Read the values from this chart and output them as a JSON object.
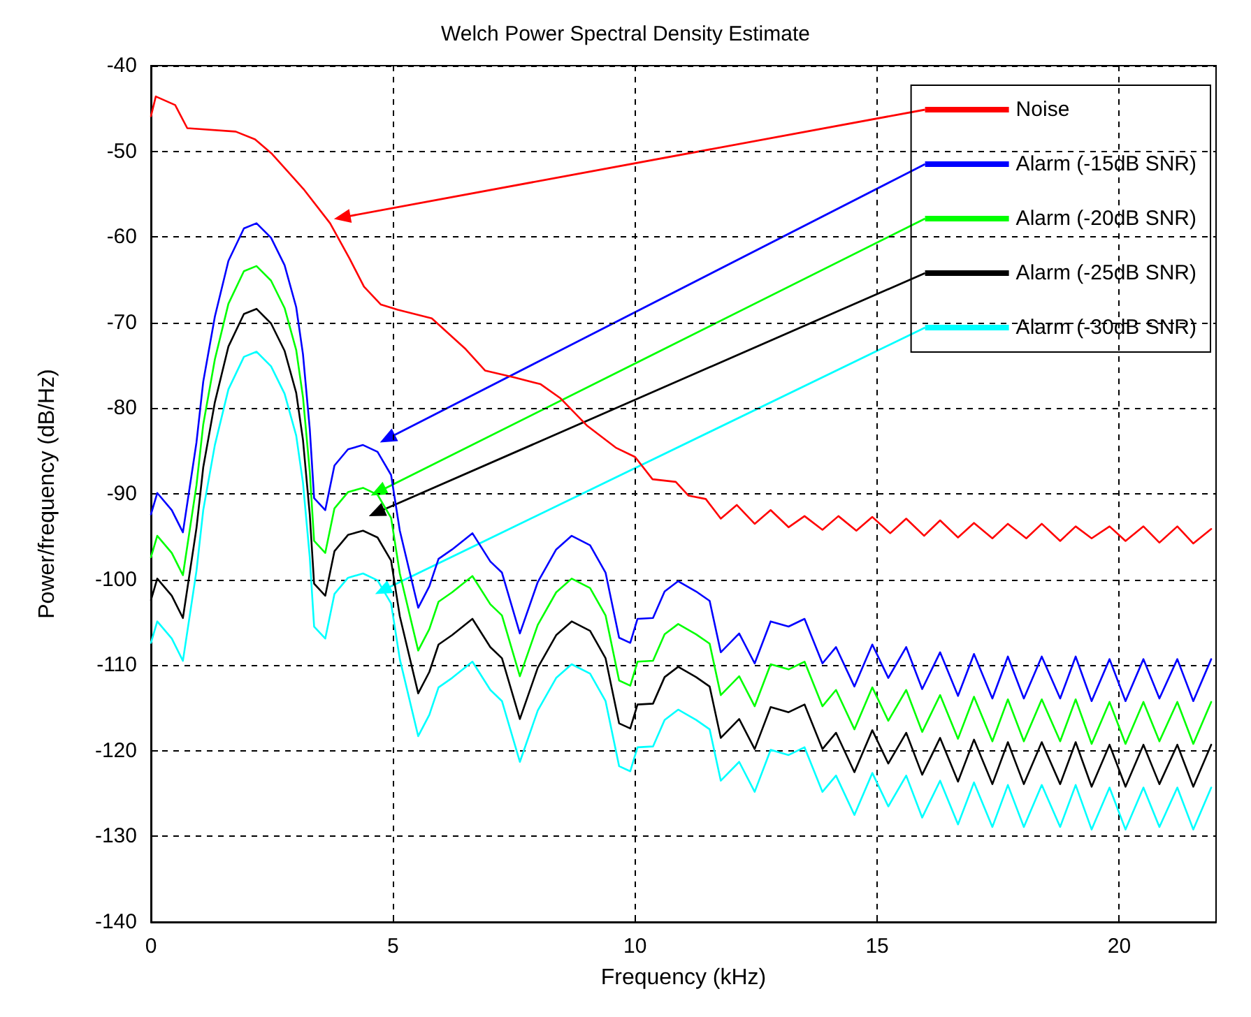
{
  "chart_data": {
    "type": "line",
    "title": "Welch Power Spectral Density Estimate",
    "xlabel": "Frequency (kHz)",
    "ylabel": "Power/frequency (dB/Hz)",
    "xlim": [
      0,
      22
    ],
    "xticks": [
      0,
      5,
      10,
      15,
      20
    ],
    "ylim": [
      -140,
      -40
    ],
    "yticks": [
      -140,
      -130,
      -120,
      -110,
      -100,
      -90,
      -80,
      -70,
      -60,
      -50,
      -40
    ],
    "grid": true,
    "legend": "top right",
    "marker": "none",
    "line_style": "solid",
    "series": [
      {
        "name": "Noise",
        "color": "#ff0000",
        "x": [
          0,
          0.1,
          0.5,
          0.75,
          1.75,
          2.15,
          2.5,
          3.15,
          3.7,
          4.1,
          4.4,
          4.75,
          5.1,
          5.8,
          6.5,
          6.9,
          7.5,
          8.05,
          8.45,
          9.0,
          9.6,
          10.0,
          10.36,
          10.84,
          11.1,
          11.46,
          11.77,
          12.1,
          12.47,
          12.8,
          13.17,
          13.5,
          13.87,
          14.2,
          14.57,
          14.9,
          15.27,
          15.6,
          15.97,
          16.3,
          16.67,
          17.0,
          17.38,
          17.7,
          18.08,
          18.4,
          18.78,
          19.1,
          19.43,
          19.8,
          20.13,
          20.5,
          20.83,
          21.2,
          21.53,
          21.9
        ],
        "values": [
          -45.9,
          -43.6,
          -44.6,
          -47.3,
          -47.7,
          -48.6,
          -50.3,
          -54.4,
          -58.4,
          -62.5,
          -65.8,
          -67.9,
          -68.5,
          -69.5,
          -73.1,
          -75.6,
          -76.4,
          -77.2,
          -78.8,
          -82,
          -84.6,
          -85.7,
          -88.3,
          -88.6,
          -90.2,
          -90.6,
          -92.9,
          -91.3,
          -93.5,
          -91.9,
          -93.9,
          -92.6,
          -94.2,
          -92.6,
          -94.3,
          -92.7,
          -94.6,
          -92.9,
          -94.9,
          -93.1,
          -95.1,
          -93.4,
          -95.2,
          -93.5,
          -95.2,
          -93.5,
          -95.5,
          -93.8,
          -95.2,
          -93.8,
          -95.5,
          -93.8,
          -95.7,
          -93.8,
          -95.8,
          -94.1
        ]
      },
      {
        "name": "Alarm (-15dB SNR)",
        "color": "#0000ff",
        "x": [
          0,
          0.13,
          0.43,
          0.66,
          0.94,
          1.08,
          1.32,
          1.6,
          1.92,
          2.18,
          2.48,
          2.76,
          3.0,
          3.14,
          3.28,
          3.37,
          3.6,
          3.79,
          4.07,
          4.38,
          4.68,
          4.96,
          5.14,
          5.52,
          5.75,
          5.94,
          6.22,
          6.64,
          7.01,
          7.25,
          7.62,
          7.99,
          8.37,
          8.69,
          9.07,
          9.39,
          9.67,
          9.9,
          10.05,
          10.37,
          10.61,
          10.89,
          11.26,
          11.54,
          11.77,
          12.15,
          12.47,
          12.8,
          13.17,
          13.5,
          13.87,
          14.15,
          14.53,
          14.9,
          15.23,
          15.6,
          15.93,
          16.3,
          16.67,
          17.0,
          17.38,
          17.7,
          18.03,
          18.4,
          18.78,
          19.1,
          19.43,
          19.8,
          20.13,
          20.5,
          20.83,
          21.2,
          21.53,
          21.9
        ],
        "values": [
          -92.4,
          -89.9,
          -91.9,
          -94.5,
          -84,
          -76.9,
          -69.3,
          -62.8,
          -59,
          -58.4,
          -60.1,
          -63.3,
          -68.2,
          -73.7,
          -82.4,
          -90.5,
          -91.9,
          -86.7,
          -84.8,
          -84.3,
          -85.1,
          -87.8,
          -94.3,
          -103.3,
          -100.8,
          -97.6,
          -96.5,
          -94.6,
          -97.9,
          -99.2,
          -106.3,
          -100.3,
          -96.5,
          -94.9,
          -96,
          -99.2,
          -106.8,
          -107.4,
          -104.6,
          -104.5,
          -101.4,
          -100.2,
          -101.4,
          -102.5,
          -108.5,
          -106.3,
          -109.8,
          -104.9,
          -105.5,
          -104.6,
          -109.8,
          -107.9,
          -112.5,
          -107.6,
          -111.5,
          -107.9,
          -112.8,
          -108.5,
          -113.6,
          -108.7,
          -113.9,
          -109,
          -113.9,
          -109,
          -113.9,
          -109,
          -114.2,
          -109.3,
          -114.2,
          -109.3,
          -113.9,
          -109.3,
          -114.2,
          -109.3
        ]
      },
      {
        "name": "Alarm (-20dB SNR)",
        "color": "#00ff00",
        "x": [
          0,
          0.13,
          0.43,
          0.66,
          0.94,
          1.08,
          1.32,
          1.6,
          1.92,
          2.18,
          2.48,
          2.76,
          3.0,
          3.14,
          3.28,
          3.37,
          3.6,
          3.79,
          4.07,
          4.38,
          4.68,
          4.96,
          5.14,
          5.52,
          5.75,
          5.94,
          6.22,
          6.64,
          7.01,
          7.25,
          7.62,
          7.99,
          8.37,
          8.69,
          9.07,
          9.39,
          9.67,
          9.9,
          10.05,
          10.37,
          10.61,
          10.89,
          11.26,
          11.54,
          11.77,
          12.15,
          12.47,
          12.8,
          13.17,
          13.5,
          13.87,
          14.15,
          14.53,
          14.9,
          15.23,
          15.6,
          15.93,
          16.3,
          16.67,
          17.0,
          17.38,
          17.7,
          18.03,
          18.4,
          18.78,
          19.1,
          19.43,
          19.8,
          20.13,
          20.5,
          20.83,
          21.2,
          21.53,
          21.9
        ],
        "values": [
          -97.4,
          -94.9,
          -96.9,
          -99.5,
          -89,
          -81.9,
          -74.3,
          -67.8,
          -64,
          -63.4,
          -65.1,
          -68.3,
          -73.2,
          -78.7,
          -87.4,
          -95.5,
          -96.9,
          -91.7,
          -89.8,
          -89.3,
          -90.1,
          -92.8,
          -99.3,
          -108.3,
          -105.8,
          -102.6,
          -101.5,
          -99.6,
          -102.9,
          -104.2,
          -111.3,
          -105.3,
          -101.5,
          -99.9,
          -101,
          -104.2,
          -111.8,
          -112.4,
          -109.6,
          -109.5,
          -106.4,
          -105.2,
          -106.4,
          -107.5,
          -113.5,
          -111.3,
          -114.8,
          -109.9,
          -110.5,
          -109.6,
          -114.8,
          -112.9,
          -117.5,
          -112.6,
          -116.5,
          -112.9,
          -117.8,
          -113.5,
          -118.6,
          -113.7,
          -118.9,
          -114,
          -118.9,
          -114,
          -118.9,
          -114,
          -119.2,
          -114.3,
          -119.2,
          -114.3,
          -118.9,
          -114.3,
          -119.2,
          -114.3
        ]
      },
      {
        "name": "Alarm (-25dB SNR)",
        "color": "#000000",
        "x": [
          0,
          0.13,
          0.43,
          0.66,
          0.94,
          1.08,
          1.32,
          1.6,
          1.92,
          2.18,
          2.48,
          2.76,
          3.0,
          3.14,
          3.28,
          3.37,
          3.6,
          3.79,
          4.07,
          4.38,
          4.68,
          4.96,
          5.14,
          5.52,
          5.75,
          5.94,
          6.22,
          6.64,
          7.01,
          7.25,
          7.62,
          7.99,
          8.37,
          8.69,
          9.07,
          9.39,
          9.67,
          9.9,
          10.05,
          10.37,
          10.61,
          10.89,
          11.26,
          11.54,
          11.77,
          12.15,
          12.47,
          12.8,
          13.17,
          13.5,
          13.87,
          14.15,
          14.53,
          14.9,
          15.23,
          15.6,
          15.93,
          16.3,
          16.67,
          17.0,
          17.38,
          17.7,
          18.03,
          18.4,
          18.78,
          19.1,
          19.43,
          19.8,
          20.13,
          20.5,
          20.83,
          21.2,
          21.53,
          21.9
        ],
        "values": [
          -102.4,
          -99.9,
          -101.9,
          -104.5,
          -94,
          -86.9,
          -79.3,
          -72.8,
          -69,
          -68.4,
          -70.1,
          -73.3,
          -78.2,
          -83.7,
          -92.4,
          -100.5,
          -101.9,
          -96.7,
          -94.8,
          -94.3,
          -95.1,
          -97.8,
          -104.3,
          -113.3,
          -110.8,
          -107.6,
          -106.5,
          -104.6,
          -107.9,
          -109.2,
          -116.3,
          -110.3,
          -106.5,
          -104.9,
          -106,
          -109.2,
          -116.8,
          -117.4,
          -114.6,
          -114.5,
          -111.4,
          -110.2,
          -111.4,
          -112.5,
          -118.5,
          -116.3,
          -119.8,
          -114.9,
          -115.5,
          -114.6,
          -119.8,
          -117.9,
          -122.5,
          -117.6,
          -121.5,
          -117.9,
          -122.8,
          -118.5,
          -123.6,
          -118.7,
          -123.9,
          -119,
          -123.9,
          -119,
          -123.9,
          -119,
          -124.2,
          -119.3,
          -124.2,
          -119.3,
          -123.9,
          -119.3,
          -124.2,
          -119.3
        ]
      },
      {
        "name": "Alarm (-30dB SNR)",
        "color": "#00ffff",
        "x": [
          0,
          0.13,
          0.43,
          0.66,
          0.94,
          1.08,
          1.32,
          1.6,
          1.92,
          2.18,
          2.48,
          2.76,
          3.0,
          3.14,
          3.28,
          3.37,
          3.6,
          3.79,
          4.07,
          4.38,
          4.68,
          4.96,
          5.14,
          5.52,
          5.75,
          5.94,
          6.22,
          6.64,
          7.01,
          7.25,
          7.62,
          7.99,
          8.37,
          8.69,
          9.07,
          9.39,
          9.67,
          9.9,
          10.05,
          10.37,
          10.61,
          10.89,
          11.26,
          11.54,
          11.77,
          12.15,
          12.47,
          12.8,
          13.17,
          13.5,
          13.87,
          14.15,
          14.53,
          14.9,
          15.23,
          15.6,
          15.93,
          16.3,
          16.67,
          17.0,
          17.38,
          17.7,
          18.03,
          18.4,
          18.78,
          19.1,
          19.43,
          19.8,
          20.13,
          20.5,
          20.83,
          21.2,
          21.53,
          21.9
        ],
        "values": [
          -107.4,
          -104.9,
          -106.9,
          -109.5,
          -99,
          -91.9,
          -84.3,
          -77.8,
          -74,
          -73.4,
          -75.1,
          -78.3,
          -83.2,
          -88.7,
          -97.4,
          -105.5,
          -106.9,
          -101.7,
          -99.8,
          -99.3,
          -100.1,
          -102.8,
          -109.3,
          -118.3,
          -115.8,
          -112.6,
          -111.5,
          -109.6,
          -112.9,
          -114.2,
          -121.3,
          -115.3,
          -111.5,
          -109.9,
          -111,
          -114.2,
          -121.8,
          -122.4,
          -119.6,
          -119.5,
          -116.4,
          -115.2,
          -116.4,
          -117.5,
          -123.5,
          -121.3,
          -124.8,
          -119.9,
          -120.5,
          -119.6,
          -124.8,
          -122.9,
          -127.5,
          -122.6,
          -126.5,
          -122.9,
          -127.8,
          -123.5,
          -128.6,
          -123.7,
          -128.9,
          -124,
          -128.9,
          -124,
          -128.9,
          -124,
          -129.2,
          -124.3,
          -129.2,
          -124.3,
          -128.9,
          -124.3,
          -129.2,
          -124.3
        ]
      }
    ]
  }
}
